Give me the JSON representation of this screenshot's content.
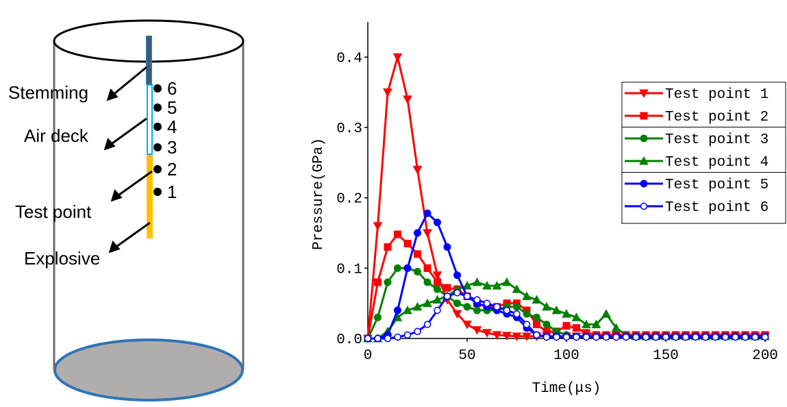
{
  "diagram": {
    "labels": [
      "Stemming",
      "Air deck",
      "Test point",
      "Explosive"
    ],
    "points": [
      "6",
      "5",
      "4",
      "3",
      "2",
      "1"
    ]
  },
  "chart_data": {
    "type": "line",
    "x_label": "Time(μs)",
    "y_label": "Pressure(GPa)",
    "xlim": [
      0,
      200
    ],
    "xticks": [
      0,
      50,
      100,
      150,
      200
    ],
    "ylim": [
      0,
      0.45
    ],
    "yticks": [
      {
        "value": 0,
        "label": "0.0"
      },
      0.1,
      0.2,
      0.3,
      0.4
    ],
    "legend": "upper right",
    "x": [
      0,
      5,
      10,
      15,
      20,
      25,
      30,
      35,
      40,
      45,
      50,
      55,
      60,
      65,
      70,
      75,
      80,
      85,
      90,
      95,
      100,
      105,
      110,
      115,
      120,
      125,
      130,
      135,
      140,
      145,
      150,
      155,
      160,
      165,
      170,
      175,
      180,
      185,
      190,
      195,
      200
    ],
    "series": [
      {
        "name": "Test point 1",
        "color": "#ff0000",
        "marker": "down-triangle",
        "values": [
          0,
          0.16,
          0.35,
          0.4,
          0.34,
          0.24,
          0.15,
          0.09,
          0.055,
          0.035,
          0.02,
          0.012,
          0.008,
          0.005,
          0.004,
          0.003,
          0.003,
          0.003,
          0.003,
          0.003,
          0.003,
          0.003,
          0.003,
          0.003,
          0.003,
          0.003,
          0.003,
          0.003,
          0.003,
          0.003,
          0.003,
          0.003,
          0.003,
          0.003,
          0.003,
          0.003,
          0.003,
          0.003,
          0.003,
          0.003,
          0.003
        ]
      },
      {
        "name": "Test point 2",
        "color": "#ff0000",
        "marker": "square",
        "values": [
          0,
          0.08,
          0.13,
          0.148,
          0.135,
          0.12,
          0.1,
          0.08,
          0.072,
          0.07,
          0.06,
          0.05,
          0.045,
          0.045,
          0.05,
          0.05,
          0.04,
          0.02,
          0.01,
          0.01,
          0.018,
          0.015,
          0.008,
          0.005,
          0.005,
          0.005,
          0.005,
          0.005,
          0.005,
          0.005,
          0.005,
          0.005,
          0.005,
          0.005,
          0.005,
          0.005,
          0.005,
          0.005,
          0.005,
          0.005,
          0.005
        ]
      },
      {
        "name": "Test point 3",
        "color": "#008000",
        "marker": "circle",
        "values": [
          0,
          0.03,
          0.08,
          0.1,
          0.1,
          0.095,
          0.08,
          0.07,
          0.06,
          0.05,
          0.045,
          0.04,
          0.04,
          0.04,
          0.045,
          0.045,
          0.035,
          0.03,
          0.02,
          0.01,
          0.005,
          0.003,
          0.003,
          0.003,
          0.003,
          0.003,
          0.003,
          0.003,
          0.003,
          0.003,
          0.003,
          0.003,
          0.003,
          0.003,
          0.003,
          0.003,
          0.003,
          0.003,
          0.003,
          0.003,
          0.003
        ]
      },
      {
        "name": "Test point 4",
        "color": "#008000",
        "marker": "triangle",
        "values": [
          0,
          0,
          0.01,
          0.03,
          0.04,
          0.045,
          0.05,
          0.055,
          0.06,
          0.07,
          0.075,
          0.08,
          0.075,
          0.075,
          0.08,
          0.07,
          0.06,
          0.055,
          0.045,
          0.04,
          0.035,
          0.03,
          0.02,
          0.02,
          0.035,
          0.015,
          0.005,
          0.003,
          0.003,
          0.003,
          0.003,
          0.003,
          0.003,
          0.003,
          0.003,
          0.003,
          0.003,
          0.003,
          0.003,
          0.003,
          0.003
        ]
      },
      {
        "name": "Test point 5",
        "color": "#0000ff",
        "marker": "circle",
        "values": [
          0,
          0,
          0.005,
          0.04,
          0.1,
          0.15,
          0.178,
          0.165,
          0.13,
          0.09,
          0.06,
          0.05,
          0.045,
          0.04,
          0.035,
          0.03,
          0.015,
          0.005,
          0.003,
          0.003,
          0.003,
          0.003,
          0.003,
          0.003,
          0.003,
          0.003,
          0.003,
          0.003,
          0.003,
          0.003,
          0.003,
          0.003,
          0.003,
          0.003,
          0.003,
          0.003,
          0.003,
          0.003,
          0.003,
          0.003,
          0.003
        ]
      },
      {
        "name": "Test point 6",
        "color": "#0000ff",
        "marker": "open-circle",
        "values": [
          0,
          0,
          0,
          0.002,
          0.005,
          0.01,
          0.02,
          0.04,
          0.06,
          0.065,
          0.06,
          0.055,
          0.05,
          0.045,
          0.04,
          0.035,
          0.02,
          0.005,
          0.002,
          0.002,
          0.002,
          0.002,
          0.002,
          0.002,
          0.002,
          0.002,
          0.002,
          0.002,
          0.002,
          0.002,
          0.002,
          0.002,
          0.002,
          0.002,
          0.002,
          0.002,
          0.002,
          0.002,
          0.002,
          0.002,
          0.002
        ]
      }
    ]
  }
}
